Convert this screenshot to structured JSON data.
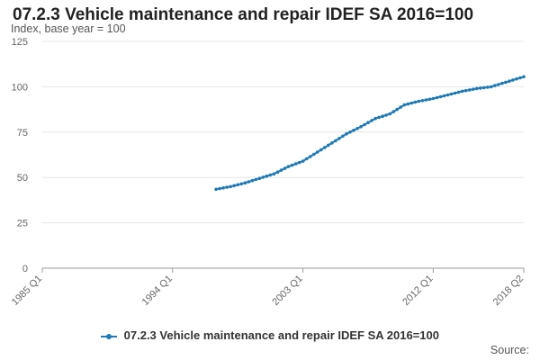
{
  "header": {
    "title": "07.2.3 Vehicle maintenance and repair IDEF SA 2016=100",
    "ylabel": "Index, base year = 100"
  },
  "footer": {
    "source": "Source:"
  },
  "colors": {
    "series": "#1f7ab5",
    "grid": "#e5e5e5",
    "axis": "#999999"
  },
  "chart_data": {
    "type": "line",
    "title": "07.2.3 Vehicle maintenance and repair IDEF SA 2016=100",
    "ylabel": "Index, base year = 100",
    "xlabel": "",
    "ylim": [
      0,
      125
    ],
    "yticks": [
      0,
      25,
      50,
      75,
      100,
      125
    ],
    "xlim": [
      1985.0,
      2018.25
    ],
    "xticks": [
      {
        "x": 1985.0,
        "label": "1985 Q1"
      },
      {
        "x": 1994.0,
        "label": "1994 Q1"
      },
      {
        "x": 2003.0,
        "label": "2003 Q1"
      },
      {
        "x": 2012.0,
        "label": "2012 Q1"
      },
      {
        "x": 2018.25,
        "label": "2018 Q2"
      }
    ],
    "grid": true,
    "legend": "bottom-center",
    "series": [
      {
        "name": "07.2.3 Vehicle maintenance and repair IDEF SA 2016=100",
        "start": "1997 Q1",
        "end": "2018 Q2",
        "anchors": [
          {
            "x": 1997.0,
            "y": 43.5
          },
          {
            "x": 1998.0,
            "y": 45.0
          },
          {
            "x": 1999.0,
            "y": 47.0
          },
          {
            "x": 2000.0,
            "y": 49.5
          },
          {
            "x": 2001.0,
            "y": 52.0
          },
          {
            "x": 2002.0,
            "y": 56.0
          },
          {
            "x": 2003.0,
            "y": 59.0
          },
          {
            "x": 2004.0,
            "y": 64.0
          },
          {
            "x": 2005.0,
            "y": 69.0
          },
          {
            "x": 2006.0,
            "y": 74.0
          },
          {
            "x": 2007.0,
            "y": 78.0
          },
          {
            "x": 2008.0,
            "y": 82.5
          },
          {
            "x": 2009.0,
            "y": 85.0
          },
          {
            "x": 2010.0,
            "y": 90.0
          },
          {
            "x": 2011.0,
            "y": 92.0
          },
          {
            "x": 2012.0,
            "y": 93.5
          },
          {
            "x": 2013.0,
            "y": 95.5
          },
          {
            "x": 2014.0,
            "y": 97.5
          },
          {
            "x": 2015.0,
            "y": 99.0
          },
          {
            "x": 2016.0,
            "y": 100.0
          },
          {
            "x": 2017.0,
            "y": 102.5
          },
          {
            "x": 2018.25,
            "y": 105.5
          }
        ]
      }
    ]
  }
}
